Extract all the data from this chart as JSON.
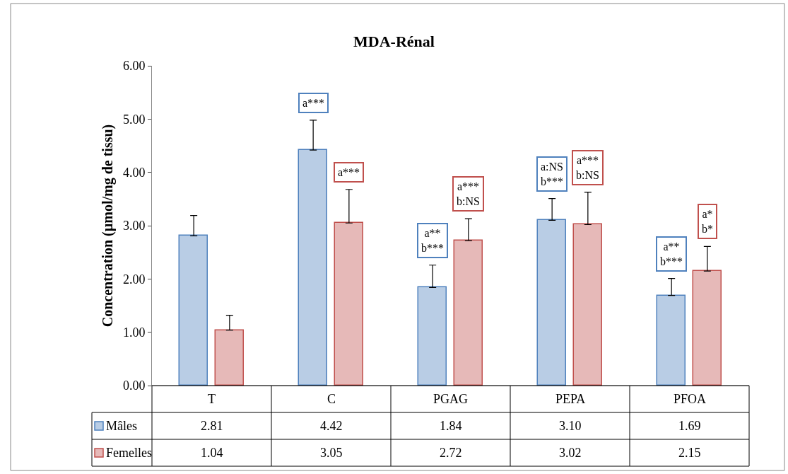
{
  "chart_data": {
    "type": "bar",
    "title": "MDA-Rénal",
    "ylabel": "Concentration (µmol/mg de tissu)",
    "categories": [
      "T",
      "C",
      "PGAG",
      "PEPA",
      "PFOA"
    ],
    "series": [
      {
        "name": "Mâles",
        "color": "#4f81bd",
        "values": [
          2.81,
          4.42,
          1.84,
          3.1,
          1.69
        ],
        "value_labels": [
          "2.81",
          "4.42",
          "1.84",
          "3.10",
          "1.69"
        ],
        "errors": [
          [
            2.81,
            3.19
          ],
          [
            4.42,
            4.98
          ],
          [
            1.84,
            2.26
          ],
          [
            3.1,
            3.51
          ],
          [
            1.69,
            2.01
          ]
        ]
      },
      {
        "name": "Femelles",
        "color": "#c0504d",
        "values": [
          1.04,
          3.05,
          2.72,
          3.02,
          2.15
        ],
        "value_labels": [
          "1.04",
          "3.05",
          "2.72",
          "3.02",
          "2.15"
        ],
        "errors": [
          [
            1.04,
            1.32
          ],
          [
            3.05,
            3.68
          ],
          [
            2.72,
            3.13
          ],
          [
            3.02,
            3.63
          ],
          [
            2.15,
            2.61
          ]
        ]
      }
    ],
    "ylim": [
      0,
      6
    ],
    "yticks": [
      {
        "value": 0,
        "label": "0.00"
      },
      {
        "value": 1,
        "label": "1.00"
      },
      {
        "value": 2,
        "label": "2.00"
      },
      {
        "value": 3,
        "label": "3.00"
      },
      {
        "value": 4,
        "label": "4.00"
      },
      {
        "value": 5,
        "label": "5.00"
      },
      {
        "value": 6,
        "label": "6.00"
      }
    ],
    "annotations": [
      "a***",
      "a***",
      "a**\nb***",
      "a***\nb:NS",
      "a:NS\nb***",
      "a***\nb:NS",
      "a**\nb***",
      "a*\nb*"
    ],
    "data_labels": true,
    "legend": "bottom"
  }
}
